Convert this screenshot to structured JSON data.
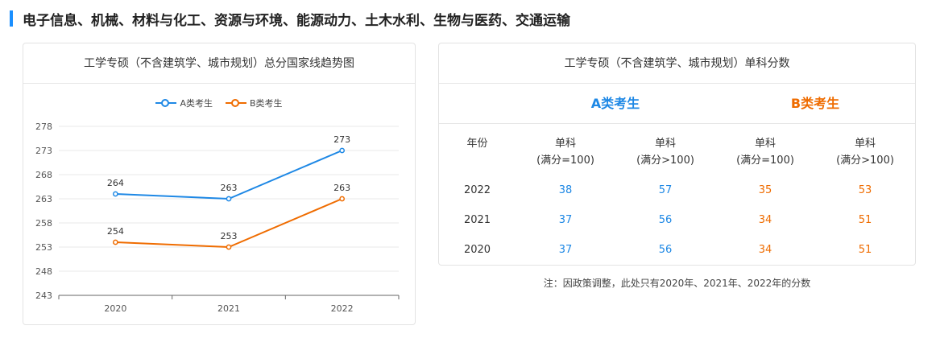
{
  "header": {
    "title": "电子信息、机械、材料与化工、资源与环境、能源动力、土木水利、生物与医药、交通运输"
  },
  "trend_card": {
    "title": "工学专硕（不含建筑学、城市规划）总分国家线趋势图"
  },
  "score_card": {
    "title": "工学专硕（不含建筑学、城市规划）单科分数",
    "group_a": "A类考生",
    "group_b": "B类考生",
    "col_year": "年份",
    "col_single_1": "单科",
    "col_cond_1": "(满分=100)",
    "col_single_2": "单科",
    "col_cond_2": "(满分>100)",
    "col_single_3": "单科",
    "col_cond_3": "(满分=100)",
    "col_single_4": "单科",
    "col_cond_4": "(满分>100)",
    "rows": [
      {
        "year": "2022",
        "a1": "38",
        "a2": "57",
        "b1": "35",
        "b2": "53"
      },
      {
        "year": "2021",
        "a1": "37",
        "a2": "56",
        "b1": "34",
        "b2": "51"
      },
      {
        "year": "2020",
        "a1": "37",
        "a2": "56",
        "b1": "34",
        "b2": "51"
      }
    ]
  },
  "note": "注：因政策调整，此处只有2020年、2021年、2022年的分数",
  "colors": {
    "accent": "#1a8fff",
    "series_a": "#1e88e5",
    "series_b": "#ef6c00"
  },
  "chart_data": {
    "type": "line",
    "categories": [
      "2020",
      "2021",
      "2022"
    ],
    "series": [
      {
        "name": "A类考生",
        "values": [
          264,
          263,
          273
        ],
        "color": "#1e88e5"
      },
      {
        "name": "B类考生",
        "values": [
          254,
          253,
          263
        ],
        "color": "#ef6c00"
      }
    ],
    "y_ticks": [
      243,
      248,
      253,
      258,
      263,
      268,
      273,
      278
    ],
    "ylim": [
      243,
      278
    ],
    "grid": true,
    "legend": "top-center"
  }
}
